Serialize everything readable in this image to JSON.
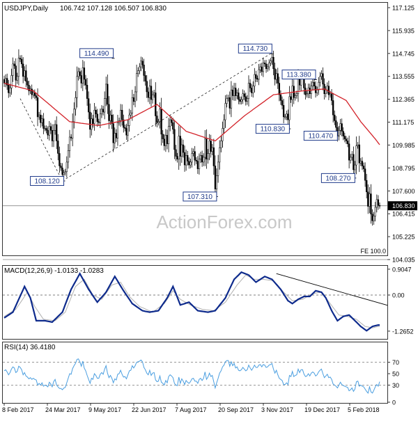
{
  "header": {
    "symbol": "USDJPY,Daily",
    "ohlc": "106.742 107.128 106.507 106.830"
  },
  "watermark": "ActionForex.com",
  "colors": {
    "candle": "#000000",
    "sma": "#d3232a",
    "macd_line": "#0d2a8c",
    "signal_line": "#b0b0b0",
    "rsi_line": "#4a9ee0",
    "label_box": "#1f3a8a",
    "trendline": "#000000",
    "grid": "#555555"
  },
  "chart_data": [
    {
      "type": "candlestick",
      "title": "USDJPY,Daily",
      "ylim": [
        104.035,
        117.125
      ],
      "yticks": [
        "117.125",
        "115.935",
        "114.745",
        "113.555",
        "112.365",
        "111.175",
        "109.985",
        "108.795",
        "107.600",
        "106.415",
        "105.225",
        "104.035"
      ],
      "xticks": [
        "8 Feb 2017",
        "24 Mar 2017",
        "9 May 2017",
        "22 Jun 2017",
        "7 Aug 2017",
        "20 Sep 2017",
        "3 Nov 2017",
        "19 Dec 2017",
        "5 Feb 2018"
      ],
      "last_price": "106.830",
      "fe_label": "FE 100.0",
      "close": [
        113.2,
        113.45,
        113.1,
        112.7,
        112.95,
        113.6,
        114.2,
        114.1,
        113.35,
        113.55,
        114.5,
        114.45,
        114.2,
        113.55,
        113.85,
        113.3,
        113.1,
        112.8,
        112.9,
        112.6,
        112.7,
        112.55,
        112.45,
        111.45,
        111.55,
        111.15,
        111.35,
        110.85,
        110.85,
        110.75,
        110.5,
        110.95,
        110.75,
        110.2,
        110.75,
        111.05,
        110.2,
        109.55,
        108.9,
        108.8,
        108.45,
        108.55,
        108.6,
        109.1,
        109.7,
        110.4,
        110.35,
        111.2,
        111.85,
        112.45,
        113.55,
        113.8,
        113.6,
        113.2,
        114.0,
        113.4,
        113.1,
        112.4,
        111.7,
        110.8,
        111.35,
        111.1,
        111.8,
        111.6,
        111.2,
        111.15,
        111.6,
        111.85,
        111.7,
        112.4,
        113.15,
        112.1,
        111.25,
        111.55,
        111.1,
        110.1,
        110.6,
        110.35,
        111.15,
        111.25,
        111.8,
        111.3,
        110.9,
        110.85,
        110.5,
        111.0,
        111.55,
        111.65,
        112.45,
        112.25,
        112.75,
        113.7,
        113.85,
        114.05,
        114.35,
        114.15,
        113.6,
        113.3,
        112.75,
        112.45,
        113.05,
        112.35,
        112.6,
        112.7,
        111.5,
        111.15,
        111.2,
        111.85,
        110.55,
        110.3,
        109.95,
        110.5,
        110.05,
        110.95,
        111.3,
        111.15,
        110.8,
        109.75,
        109.4,
        109.25,
        110.45,
        109.4,
        110.0,
        109.6,
        108.95,
        109.45,
        109.15,
        108.95,
        109.1,
        109.55,
        109.65,
        109.2,
        109.15,
        108.75,
        109.25,
        109.45,
        109.1,
        109.35,
        110.3,
        109.25,
        109.55,
        110.2,
        109.65,
        109.85,
        108.9,
        107.7,
        108.4,
        109.1,
        109.85,
        110.2,
        110.85,
        111.3,
        112.15,
        112.4,
        112.45,
        111.9,
        112.85,
        112.55,
        112.95,
        112.55,
        112.7,
        112.35,
        112.25,
        112.35,
        112.65,
        112.5,
        112.25,
        112.4,
        113.2,
        112.95,
        112.7,
        113.05,
        113.65,
        113.45,
        113.4,
        113.9,
        114.05,
        113.8,
        114.25,
        114.2,
        113.95,
        114.05,
        114.25,
        114.35,
        114.55,
        113.95,
        113.4,
        113.7,
        113.2,
        112.6,
        112.3,
        112.05,
        111.45,
        111.45,
        111.6,
        111.3,
        112.5,
        112.35,
        113.05,
        112.45,
        112.55,
        112.65,
        113.5,
        113.1,
        113.6,
        113.55,
        112.95,
        112.6,
        112.65,
        112.95,
        112.65,
        113.05,
        113.25,
        113.05,
        112.7,
        112.85,
        113.25,
        113.55,
        113.7,
        113.15,
        112.65,
        112.85,
        113.05,
        112.6,
        112.65,
        112.3,
        111.55,
        111.25,
        110.9,
        110.45,
        110.75,
        111.1,
        110.7,
        110.45,
        110.3,
        110.2,
        110.05,
        109.2,
        109.35,
        109.5,
        108.7,
        108.95,
        109.95,
        110.0,
        109.05,
        109.15,
        108.9,
        108.75,
        108.15,
        107.55,
        106.8,
        107.45,
        106.4,
        106.05,
        106.3,
        106.75,
        107.15,
        106.85,
        106.83
      ],
      "sma55_anchors": [
        [
          0,
          113.2
        ],
        [
          20,
          112.8
        ],
        [
          45,
          111.2
        ],
        [
          65,
          111.0
        ],
        [
          85,
          111.3
        ],
        [
          105,
          112.1
        ],
        [
          125,
          110.7
        ],
        [
          145,
          110.2
        ],
        [
          165,
          111.5
        ],
        [
          185,
          112.6
        ],
        [
          205,
          112.8
        ],
        [
          220,
          112.9
        ],
        [
          235,
          112.3
        ],
        [
          245,
          111.2
        ],
        [
          255,
          110.3
        ],
        [
          258,
          110.0
        ]
      ],
      "annotations": [
        {
          "text": "108.120",
          "bar": 40,
          "value": 108.12
        },
        {
          "text": "114.490",
          "bar": 74,
          "value": 114.49
        },
        {
          "text": "107.310",
          "bar": 145,
          "value": 107.31
        },
        {
          "text": "114.730",
          "bar": 183,
          "value": 114.73
        },
        {
          "text": "110.830",
          "bar": 195,
          "value": 110.83
        },
        {
          "text": "113.380",
          "bar": 213,
          "value": 113.38
        },
        {
          "text": "110.470",
          "bar": 228,
          "value": 110.47
        },
        {
          "text": "108.270",
          "bar": 240,
          "value": 108.27
        }
      ],
      "projection_lines": [
        {
          "from": {
            "bar": 11,
            "value": 112.4
          },
          "to": {
            "bar": 40,
            "value": 108.12
          }
        },
        {
          "from": {
            "bar": 40,
            "value": 108.12
          },
          "to": {
            "bar": 183,
            "value": 114.73
          }
        }
      ]
    },
    {
      "type": "line",
      "title": "MACD(12,26,9) -1.0133 -1.0283",
      "ylim": [
        -1.39,
        0.95
      ],
      "yticks": [
        "0.9047",
        "0.00",
        "-1.2652"
      ],
      "series": [
        {
          "name": "MACD",
          "anchors": [
            [
              0,
              -0.8
            ],
            [
              6,
              -0.6
            ],
            [
              14,
              0.3
            ],
            [
              18,
              -0.1
            ],
            [
              22,
              -0.9
            ],
            [
              28,
              -0.9
            ],
            [
              33,
              -0.95
            ],
            [
              40,
              -0.6
            ],
            [
              46,
              0.2
            ],
            [
              52,
              0.75
            ],
            [
              58,
              0.2
            ],
            [
              64,
              -0.25
            ],
            [
              70,
              0.1
            ],
            [
              76,
              0.65
            ],
            [
              82,
              0.15
            ],
            [
              88,
              -0.3
            ],
            [
              95,
              -0.55
            ],
            [
              100,
              -0.6
            ],
            [
              106,
              -0.55
            ],
            [
              112,
              -0.1
            ],
            [
              116,
              0.3
            ],
            [
              118,
              0.05
            ],
            [
              121,
              -0.35
            ],
            [
              127,
              -0.25
            ],
            [
              133,
              -0.55
            ],
            [
              140,
              -0.6
            ],
            [
              145,
              -0.55
            ],
            [
              152,
              -0.1
            ],
            [
              158,
              0.55
            ],
            [
              163,
              0.8
            ],
            [
              168,
              0.7
            ],
            [
              173,
              0.45
            ],
            [
              179,
              0.65
            ],
            [
              184,
              0.55
            ],
            [
              190,
              0.2
            ],
            [
              195,
              -0.2
            ],
            [
              198,
              -0.3
            ],
            [
              202,
              -0.15
            ],
            [
              206,
              -0.05
            ],
            [
              210,
              -0.05
            ],
            [
              214,
              0.15
            ],
            [
              218,
              0.1
            ],
            [
              221,
              -0.1
            ],
            [
              225,
              -0.55
            ],
            [
              229,
              -0.9
            ],
            [
              233,
              -0.75
            ],
            [
              237,
              -0.7
            ],
            [
              241,
              -0.9
            ],
            [
              245,
              -1.1
            ],
            [
              249,
              -1.25
            ],
            [
              253,
              -1.1
            ],
            [
              257,
              -1.05
            ]
          ]
        },
        {
          "name": "Signal",
          "anchors": [
            [
              0,
              -0.75
            ],
            [
              8,
              -0.5
            ],
            [
              16,
              0.1
            ],
            [
              21,
              -0.4
            ],
            [
              27,
              -0.85
            ],
            [
              35,
              -0.9
            ],
            [
              42,
              -0.6
            ],
            [
              49,
              0.3
            ],
            [
              55,
              0.55
            ],
            [
              61,
              0.0
            ],
            [
              67,
              -0.15
            ],
            [
              74,
              0.35
            ],
            [
              80,
              0.45
            ],
            [
              86,
              -0.05
            ],
            [
              93,
              -0.4
            ],
            [
              102,
              -0.6
            ],
            [
              110,
              -0.3
            ],
            [
              116,
              0.15
            ],
            [
              121,
              -0.15
            ],
            [
              128,
              -0.35
            ],
            [
              136,
              -0.5
            ],
            [
              144,
              -0.55
            ],
            [
              152,
              -0.25
            ],
            [
              160,
              0.35
            ],
            [
              166,
              0.7
            ],
            [
              172,
              0.55
            ],
            [
              178,
              0.55
            ],
            [
              185,
              0.5
            ],
            [
              192,
              0.1
            ],
            [
              198,
              -0.2
            ],
            [
              205,
              -0.15
            ],
            [
              212,
              0.05
            ],
            [
              218,
              0.1
            ],
            [
              224,
              -0.3
            ],
            [
              230,
              -0.7
            ],
            [
              236,
              -0.75
            ],
            [
              242,
              -0.85
            ],
            [
              248,
              -1.1
            ],
            [
              253,
              -1.15
            ],
            [
              257,
              -1.1
            ]
          ]
        }
      ],
      "trendline": {
        "from": {
          "bar": 187,
          "value": 0.75
        },
        "to": {
          "bar": 261,
          "value": -0.36
        }
      }
    },
    {
      "type": "line",
      "title": "RSI(14) 36.4180",
      "ylim": [
        0,
        100
      ],
      "yticks": [
        "70",
        "50",
        "30",
        "0"
      ],
      "series": [
        {
          "name": "RSI",
          "values": [
            55,
            57,
            53,
            48,
            52,
            58,
            62,
            60,
            52,
            54,
            63,
            61,
            57,
            48,
            52,
            46,
            44,
            41,
            43,
            40,
            42,
            40,
            39,
            30,
            33,
            30,
            34,
            28,
            30,
            29,
            27,
            35,
            32,
            27,
            36,
            40,
            30,
            27,
            24,
            24,
            22,
            25,
            26,
            34,
            42,
            50,
            49,
            59,
            64,
            68,
            75,
            76,
            71,
            63,
            72,
            60,
            55,
            47,
            40,
            33,
            42,
            40,
            50,
            47,
            42,
            42,
            49,
            52,
            49,
            58,
            64,
            51,
            43,
            47,
            42,
            34,
            41,
            39,
            49,
            50,
            56,
            49,
            44,
            45,
            41,
            48,
            55,
            56,
            64,
            60,
            64,
            70,
            71,
            72,
            74,
            71,
            61,
            57,
            51,
            48,
            56,
            47,
            51,
            52,
            39,
            36,
            37,
            46,
            35,
            33,
            30,
            38,
            34,
            45,
            48,
            46,
            43,
            33,
            30,
            29,
            44,
            33,
            41,
            37,
            31,
            38,
            35,
            33,
            36,
            41,
            42,
            37,
            37,
            33,
            40,
            42,
            38,
            42,
            53,
            40,
            44,
            51,
            45,
            47,
            36,
            25,
            34,
            42,
            51,
            55,
            62,
            65,
            71,
            73,
            73,
            63,
            71,
            64,
            68,
            60,
            62,
            56,
            55,
            57,
            61,
            58,
            55,
            57,
            65,
            60,
            56,
            60,
            65,
            61,
            61,
            65,
            66,
            62,
            66,
            65,
            61,
            62,
            65,
            66,
            68,
            58,
            51,
            56,
            48,
            42,
            40,
            38,
            31,
            31,
            34,
            31,
            47,
            45,
            54,
            45,
            47,
            48,
            58,
            52,
            57,
            57,
            49,
            45,
            46,
            50,
            46,
            51,
            53,
            51,
            46,
            48,
            53,
            56,
            58,
            50,
            43,
            46,
            49,
            43,
            44,
            40,
            32,
            30,
            28,
            25,
            30,
            35,
            31,
            29,
            28,
            27,
            26,
            20,
            22,
            25,
            19,
            23,
            36,
            37,
            28,
            30,
            28,
            27,
            23,
            19,
            16,
            27,
            18,
            16,
            21,
            27,
            31,
            28,
            36
          ]
        }
      ]
    }
  ]
}
